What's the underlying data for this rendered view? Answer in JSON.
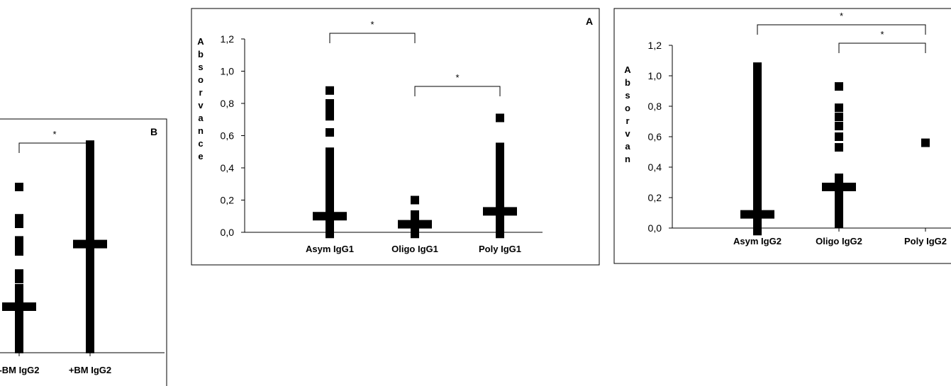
{
  "chart_data": [
    {
      "type": "scatter",
      "panel_label": "B",
      "categories": [
        "-BM IgG2",
        "+BM IgG2"
      ],
      "y_ticks": [],
      "ylim": [
        0,
        1.2
      ],
      "ylabel": "",
      "grid": false,
      "points": [
        [
          0.02,
          0.05,
          0.08,
          0.11,
          0.14,
          0.17,
          0.2,
          0.23,
          0.26,
          0.29,
          0.32,
          0.35,
          0.4,
          0.43,
          0.55,
          0.58,
          0.61,
          0.7,
          0.73,
          0.9
        ],
        [
          0.02,
          0.05,
          0.08,
          0.11,
          0.14,
          0.17,
          0.2,
          0.23,
          0.26,
          0.29,
          0.32,
          0.35,
          0.38,
          0.41,
          0.44,
          0.47,
          0.5,
          0.53,
          0.56,
          0.59,
          0.62,
          0.65,
          0.68,
          0.71,
          0.74,
          0.77,
          0.8,
          0.83,
          0.86,
          0.89,
          0.92,
          0.95,
          0.98,
          1.01,
          1.04,
          1.07,
          1.1,
          1.13
        ]
      ],
      "medians": [
        0.25,
        0.59
      ],
      "significance": [
        {
          "from": 0,
          "to": 1,
          "label": "*"
        }
      ]
    },
    {
      "type": "scatter",
      "panel_label": "A",
      "categories": [
        "Asym IgG1",
        "Oligo  IgG1",
        "Poly  IgG1"
      ],
      "y_ticks": [
        "0,0",
        "0,2",
        "0,4",
        "0,6",
        "0,8",
        "1,0",
        "1,2"
      ],
      "ylim": [
        0,
        1.2
      ],
      "ylabel": "Absorvance",
      "grid": false,
      "points": [
        [
          -0.01,
          0.02,
          0.05,
          0.08,
          0.11,
          0.14,
          0.17,
          0.2,
          0.23,
          0.26,
          0.29,
          0.32,
          0.35,
          0.38,
          0.41,
          0.44,
          0.47,
          0.5,
          0.62,
          0.72,
          0.76,
          0.8,
          0.88
        ],
        [
          -0.01,
          0.02,
          0.05,
          0.08,
          0.11,
          0.2
        ],
        [
          -0.01,
          0.02,
          0.05,
          0.08,
          0.11,
          0.14,
          0.17,
          0.2,
          0.23,
          0.26,
          0.29,
          0.32,
          0.35,
          0.38,
          0.41,
          0.44,
          0.47,
          0.5,
          0.53,
          0.71
        ]
      ],
      "medians": [
        0.1,
        0.05,
        0.13
      ],
      "significance": [
        {
          "from": 0,
          "to": 1,
          "label": "*"
        },
        {
          "from": 1,
          "to": 2,
          "label": "*"
        }
      ]
    },
    {
      "type": "scatter",
      "panel_label": "",
      "categories": [
        "Asym IgG2",
        "Oligo IgG2",
        "Poly IgG2"
      ],
      "y_ticks": [
        "0,0",
        "0,2",
        "0,4",
        "0,6",
        "0,8",
        "1,0",
        "1,2"
      ],
      "ylim": [
        0,
        1.2
      ],
      "ylabel": "Absorvan",
      "grid": false,
      "points": [
        [
          -0.02,
          0.01,
          0.04,
          0.07,
          0.1,
          0.13,
          0.16,
          0.19,
          0.22,
          0.25,
          0.28,
          0.31,
          0.34,
          0.37,
          0.4,
          0.43,
          0.46,
          0.49,
          0.52,
          0.55,
          0.58,
          0.61,
          0.64,
          0.67,
          0.7,
          0.73,
          0.76,
          0.79,
          0.82,
          0.85,
          0.88,
          0.91,
          0.94,
          0.97,
          1.0,
          1.03,
          1.06
        ],
        [
          0.03,
          0.06,
          0.09,
          0.12,
          0.15,
          0.18,
          0.21,
          0.24,
          0.27,
          0.3,
          0.33,
          0.53,
          0.6,
          0.67,
          0.73,
          0.79,
          0.93
        ],
        [
          0.56
        ]
      ],
      "medians": [
        0.09,
        0.27,
        null
      ],
      "significance": [
        {
          "from": 0,
          "to": 2,
          "label": "*"
        },
        {
          "from": 1,
          "to": 2,
          "label": "*"
        }
      ]
    }
  ]
}
